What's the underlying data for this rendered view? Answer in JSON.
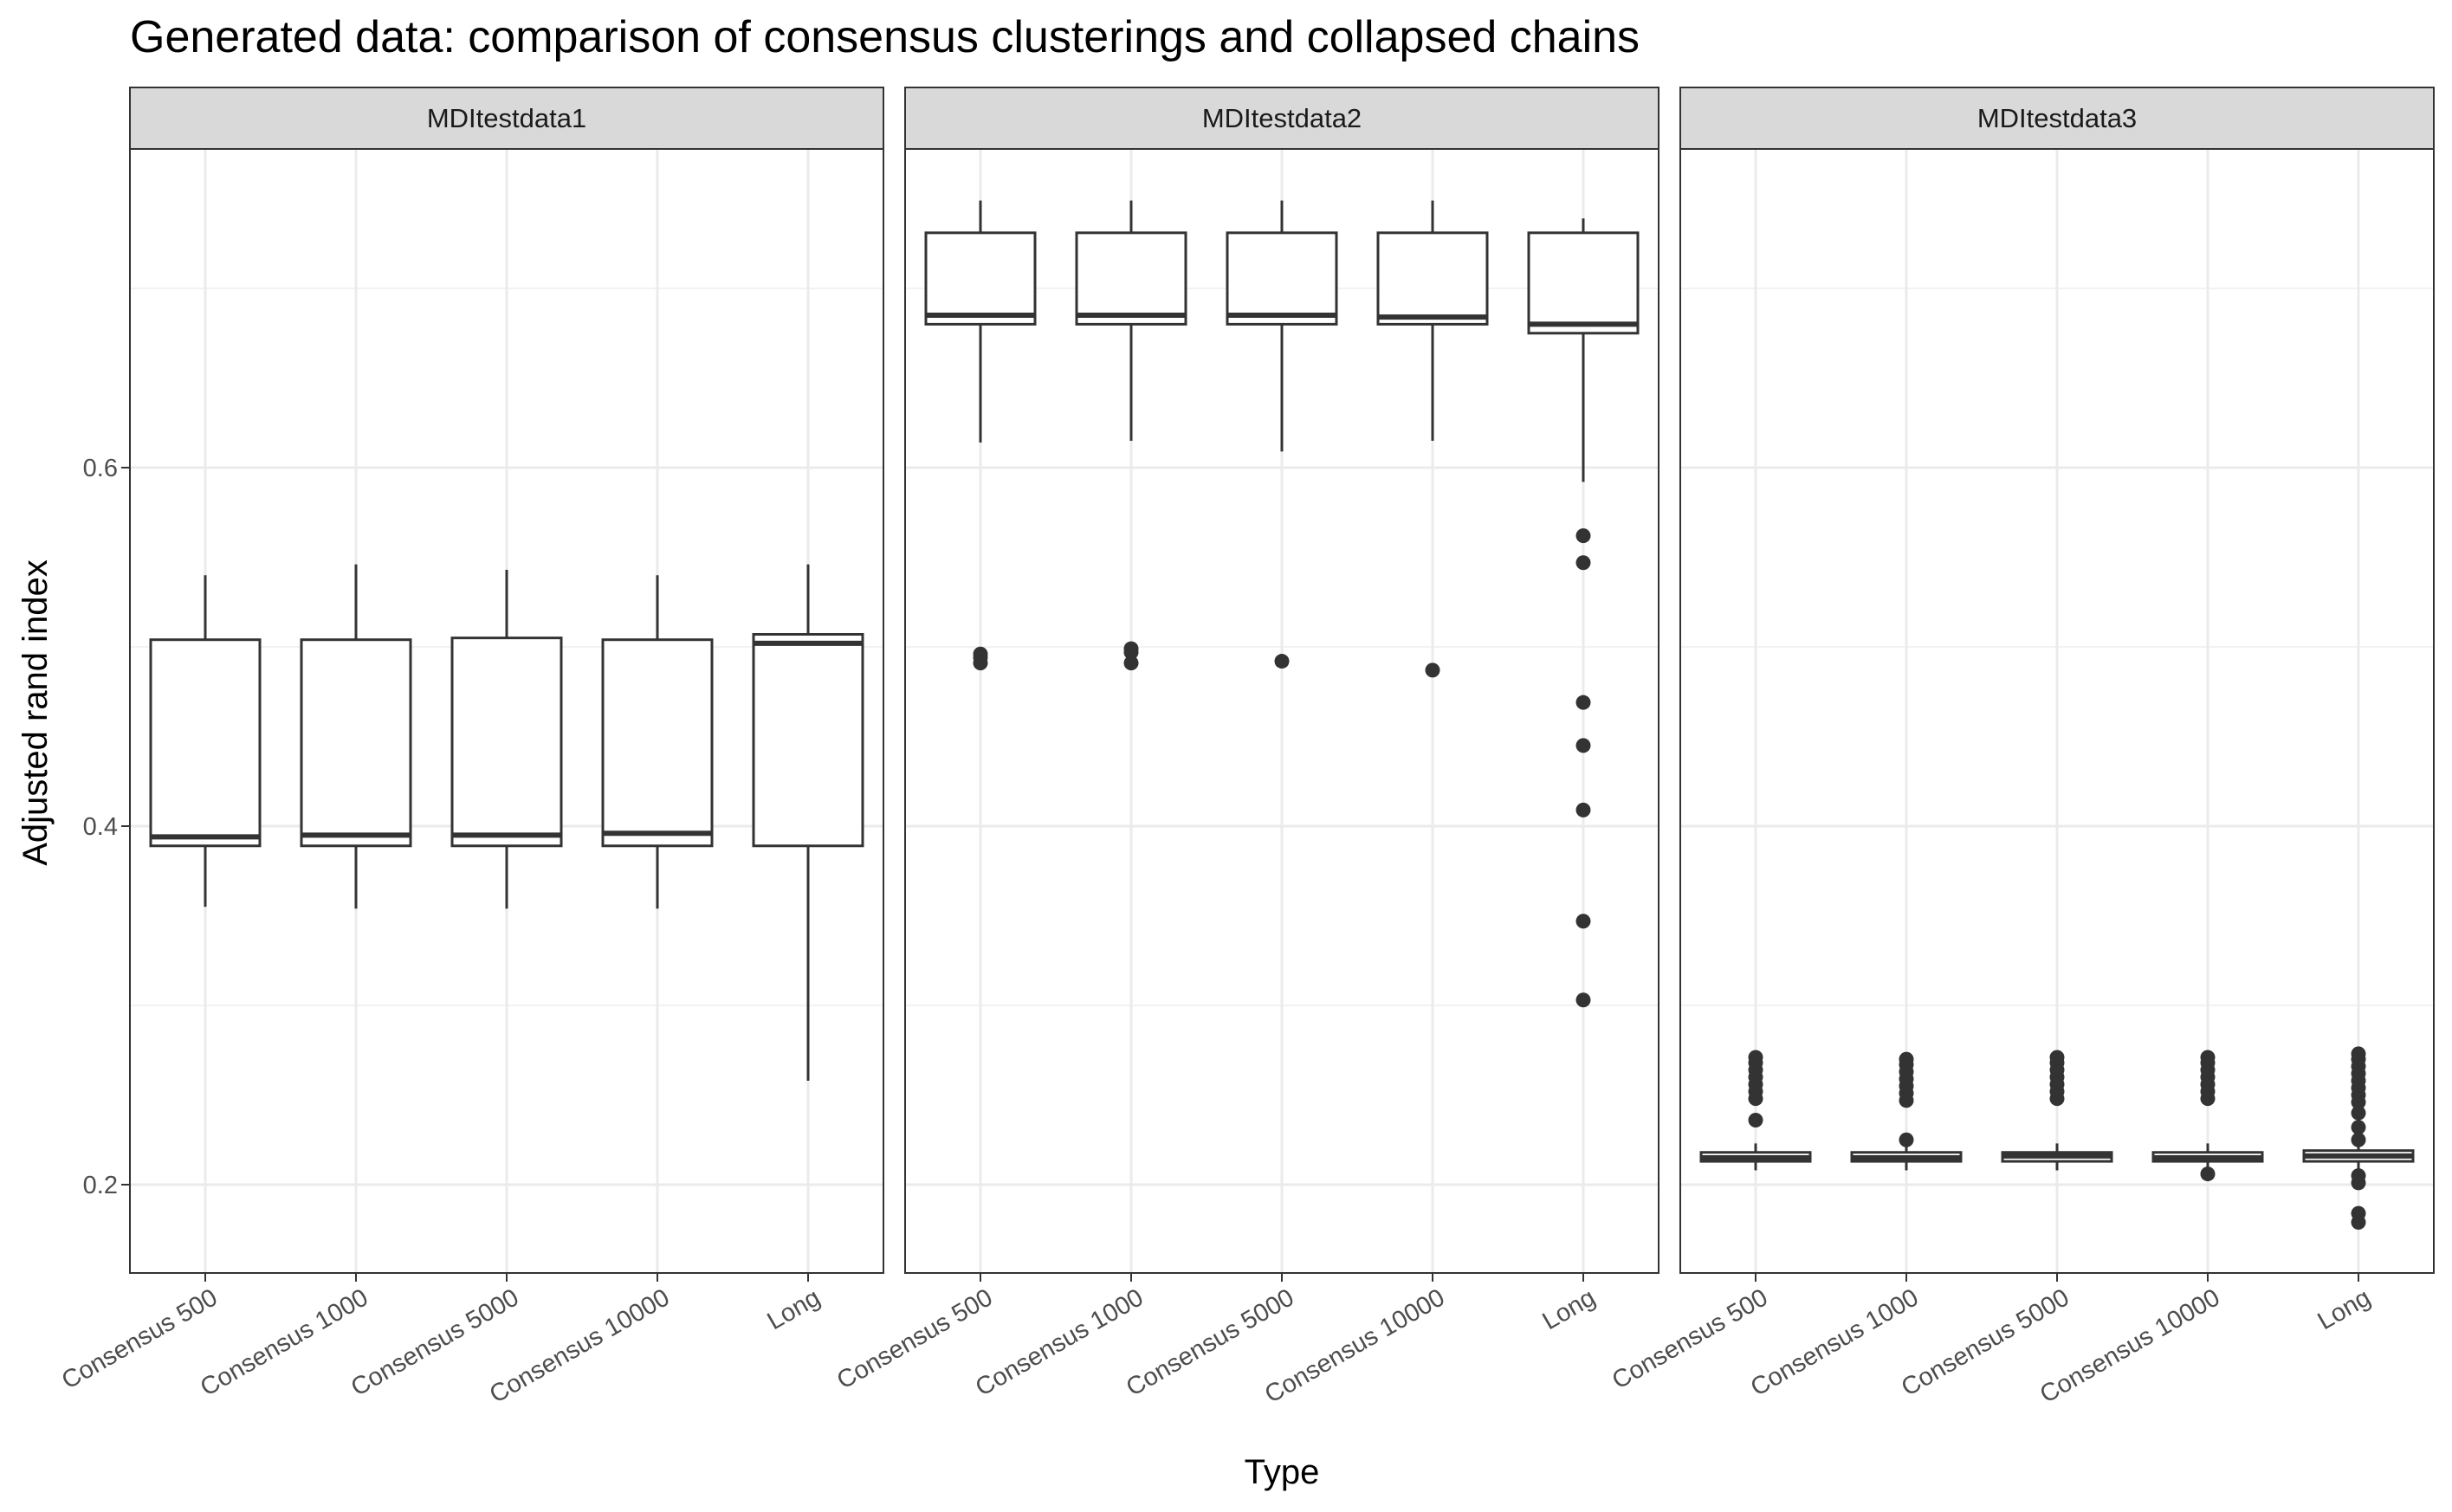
{
  "chart_data": {
    "type": "box",
    "title": "Generated data: comparison of consensus clusterings and collapsed chains",
    "xlabel": "Type",
    "ylabel": "Adjusted rand index",
    "ylim": [
      0.15,
      0.775
    ],
    "yticks": [
      0.2,
      0.4,
      0.6
    ],
    "ytick_labels": [
      "0.2",
      "0.4",
      "0.6"
    ],
    "grid": true,
    "categories": [
      "Consensus 500",
      "Consensus 1000",
      "Consensus 5000",
      "Consensus 10000",
      "Long"
    ],
    "facets": [
      {
        "name": "MDItestdata1",
        "boxes": [
          {
            "category": "Consensus 500",
            "lower_whisker": 0.355,
            "q1": 0.389,
            "median": 0.394,
            "q3": 0.504,
            "upper_whisker": 0.54,
            "outliers": []
          },
          {
            "category": "Consensus 1000",
            "lower_whisker": 0.354,
            "q1": 0.389,
            "median": 0.395,
            "q3": 0.504,
            "upper_whisker": 0.546,
            "outliers": []
          },
          {
            "category": "Consensus 5000",
            "lower_whisker": 0.354,
            "q1": 0.389,
            "median": 0.395,
            "q3": 0.505,
            "upper_whisker": 0.543,
            "outliers": []
          },
          {
            "category": "Consensus 10000",
            "lower_whisker": 0.354,
            "q1": 0.389,
            "median": 0.396,
            "q3": 0.504,
            "upper_whisker": 0.54,
            "outliers": []
          },
          {
            "category": "Long",
            "lower_whisker": 0.258,
            "q1": 0.389,
            "median": 0.502,
            "q3": 0.507,
            "upper_whisker": 0.546,
            "outliers": []
          }
        ]
      },
      {
        "name": "MDItestdata2",
        "boxes": [
          {
            "category": "Consensus 500",
            "lower_whisker": 0.614,
            "q1": 0.68,
            "median": 0.685,
            "q3": 0.731,
            "upper_whisker": 0.749,
            "outliers": [
              0.496,
              0.494,
              0.491
            ]
          },
          {
            "category": "Consensus 1000",
            "lower_whisker": 0.615,
            "q1": 0.68,
            "median": 0.685,
            "q3": 0.731,
            "upper_whisker": 0.749,
            "outliers": [
              0.499,
              0.497,
              0.491
            ]
          },
          {
            "category": "Consensus 5000",
            "lower_whisker": 0.609,
            "q1": 0.68,
            "median": 0.685,
            "q3": 0.731,
            "upper_whisker": 0.749,
            "outliers": [
              0.492
            ]
          },
          {
            "category": "Consensus 10000",
            "lower_whisker": 0.615,
            "q1": 0.68,
            "median": 0.684,
            "q3": 0.731,
            "upper_whisker": 0.749,
            "outliers": [
              0.487
            ]
          },
          {
            "category": "Long",
            "lower_whisker": 0.592,
            "q1": 0.675,
            "median": 0.68,
            "q3": 0.731,
            "upper_whisker": 0.739,
            "outliers": [
              0.562,
              0.547,
              0.469,
              0.445,
              0.409,
              0.347,
              0.303
            ]
          }
        ]
      },
      {
        "name": "MDItestdata3",
        "boxes": [
          {
            "category": "Consensus 500",
            "lower_whisker": 0.208,
            "q1": 0.213,
            "median": 0.215,
            "q3": 0.218,
            "upper_whisker": 0.223,
            "outliers": [
              0.236,
              0.248,
              0.252,
              0.256,
              0.26,
              0.264,
              0.268,
              0.271
            ]
          },
          {
            "category": "Consensus 1000",
            "lower_whisker": 0.208,
            "q1": 0.213,
            "median": 0.215,
            "q3": 0.218,
            "upper_whisker": 0.223,
            "outliers": [
              0.225,
              0.247,
              0.251,
              0.255,
              0.259,
              0.263,
              0.267,
              0.27
            ]
          },
          {
            "category": "Consensus 5000",
            "lower_whisker": 0.208,
            "q1": 0.213,
            "median": 0.216,
            "q3": 0.218,
            "upper_whisker": 0.223,
            "outliers": [
              0.248,
              0.252,
              0.256,
              0.26,
              0.264,
              0.268,
              0.271
            ]
          },
          {
            "category": "Consensus 10000",
            "lower_whisker": 0.208,
            "q1": 0.213,
            "median": 0.215,
            "q3": 0.218,
            "upper_whisker": 0.223,
            "outliers": [
              0.206,
              0.248,
              0.252,
              0.256,
              0.26,
              0.264,
              0.268,
              0.271
            ]
          },
          {
            "category": "Long",
            "lower_whisker": 0.206,
            "q1": 0.213,
            "median": 0.216,
            "q3": 0.219,
            "upper_whisker": 0.224,
            "outliers": [
              0.179,
              0.184,
              0.201,
              0.205,
              0.225,
              0.232,
              0.24,
              0.246,
              0.25,
              0.254,
              0.258,
              0.262,
              0.266,
              0.27,
              0.273
            ]
          }
        ]
      }
    ]
  },
  "colors": {
    "background": "#ffffff",
    "strip_fill": "#d9d9d9",
    "panel_border": "#333333",
    "grid_major": "#ebebeb",
    "grid_minor": "#f2f2f2",
    "box_stroke": "#333333",
    "outlier": "#333333"
  }
}
